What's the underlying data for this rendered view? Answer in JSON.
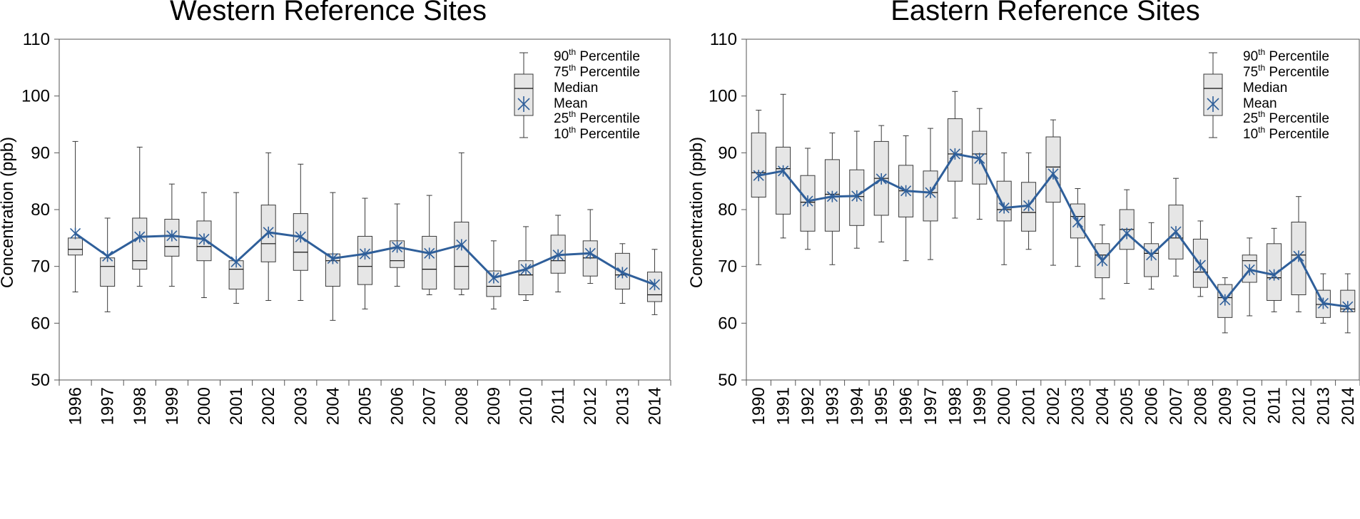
{
  "chart_data": [
    {
      "type": "box",
      "title": "Western Reference Sites",
      "xlabel": "",
      "ylabel": "Concentration (ppb)",
      "ylim": [
        50,
        110
      ],
      "yticks": [
        "50",
        "60",
        "70",
        "80",
        "90",
        "100",
        "110"
      ],
      "categories": [
        "1996",
        "1997",
        "1998",
        "1999",
        "2000",
        "2001",
        "2002",
        "2003",
        "2004",
        "2005",
        "2006",
        "2007",
        "2008",
        "2009",
        "2010",
        "2011",
        "2012",
        "2013",
        "2014"
      ],
      "series": [
        {
          "name": "10th Percentile",
          "values": [
            65.5,
            62,
            66.5,
            66.5,
            64.5,
            63.5,
            64,
            64,
            60.5,
            62.5,
            66.5,
            65,
            65,
            62.5,
            64,
            65.5,
            67,
            63.5,
            61.5
          ]
        },
        {
          "name": "25th Percentile",
          "values": [
            72,
            66.5,
            69.5,
            71.8,
            71,
            66,
            70.8,
            69.3,
            66.5,
            66.8,
            69.8,
            66,
            66,
            64.7,
            65,
            68.8,
            68.3,
            66,
            63.8
          ]
        },
        {
          "name": "Median",
          "values": [
            73,
            70,
            71,
            73.5,
            73.5,
            69.5,
            74,
            72.5,
            71,
            70,
            71,
            69.5,
            70,
            66.5,
            68.5,
            71,
            71.5,
            68.5,
            65
          ]
        },
        {
          "name": "75th Percentile",
          "values": [
            75,
            71.5,
            78.5,
            78.3,
            78,
            71,
            80.8,
            79.3,
            72.2,
            75.3,
            74.5,
            75.3,
            77.8,
            69.2,
            71,
            75.5,
            74.5,
            72.3,
            69
          ]
        },
        {
          "name": "90th Percentile",
          "values": [
            92,
            78.5,
            91,
            84.5,
            83,
            83,
            90,
            88,
            83,
            82,
            81,
            82.5,
            90,
            74.5,
            77,
            79,
            80,
            74,
            73
          ]
        },
        {
          "name": "Mean",
          "values": [
            75.8,
            71.8,
            75.2,
            75.4,
            74.8,
            70.8,
            76,
            75.2,
            71.4,
            72.2,
            73.4,
            72.3,
            73.8,
            68,
            69.5,
            72,
            72.3,
            68.9,
            66.8
          ]
        }
      ],
      "legend": {
        "position": "top-right",
        "entries": [
          {
            "base": "90",
            "sup": "th",
            "rest": " Percentile"
          },
          {
            "base": "75",
            "sup": "th",
            "rest": " Percentile"
          },
          {
            "base": "Median",
            "sup": "",
            "rest": ""
          },
          {
            "base": "Mean",
            "sup": "",
            "rest": ""
          },
          {
            "base": "25",
            "sup": "th",
            "rest": " Percentile"
          },
          {
            "base": "10",
            "sup": "th",
            "rest": " Percentile"
          }
        ]
      }
    },
    {
      "type": "box",
      "title": "Eastern Reference Sites",
      "xlabel": "",
      "ylabel": "Concentration (ppb)",
      "ylim": [
        50,
        110
      ],
      "yticks": [
        "50",
        "60",
        "70",
        "80",
        "90",
        "100",
        "110"
      ],
      "categories": [
        "1990",
        "1991",
        "1992",
        "1993",
        "1994",
        "1995",
        "1996",
        "1997",
        "1998",
        "1999",
        "2000",
        "2001",
        "2002",
        "2003",
        "2004",
        "2005",
        "2006",
        "2007",
        "2008",
        "2009",
        "2010",
        "2011",
        "2012",
        "2013",
        "2014"
      ],
      "series": [
        {
          "name": "10th Percentile",
          "values": [
            70.3,
            75,
            73,
            70.3,
            73.2,
            74.3,
            71,
            71.2,
            78.5,
            78.3,
            70.3,
            73,
            70.2,
            70,
            64.3,
            67,
            66,
            68.3,
            64.7,
            58.3,
            61.3,
            62,
            62,
            60,
            58.3
          ]
        },
        {
          "name": "25th Percentile",
          "values": [
            82.2,
            79.2,
            76.2,
            76.2,
            77.2,
            79,
            78.7,
            78,
            85,
            84.5,
            78,
            76.2,
            81.3,
            75,
            68,
            73,
            68.2,
            71.3,
            66.3,
            61,
            67.2,
            64,
            65,
            61,
            62
          ]
        },
        {
          "name": "Median",
          "values": [
            86.5,
            87.2,
            81.3,
            82.7,
            82.3,
            85.5,
            83.3,
            83,
            89.8,
            89.8,
            80,
            79.5,
            87.5,
            78.8,
            72,
            76.5,
            72.3,
            75,
            69,
            64.5,
            71,
            68,
            72,
            63.3,
            62.5
          ]
        },
        {
          "name": "75th Percentile",
          "values": [
            93.5,
            91,
            86,
            88.8,
            87,
            92,
            87.8,
            86.8,
            96,
            93.8,
            85,
            84.8,
            92.8,
            81,
            74,
            80,
            74,
            80.8,
            74.8,
            66.8,
            72,
            74,
            77.8,
            65.8,
            65.8
          ]
        },
        {
          "name": "90th Percentile",
          "values": [
            97.5,
            100.3,
            90.8,
            93.5,
            93.8,
            94.8,
            93,
            94.3,
            100.8,
            97.8,
            90,
            90,
            95.8,
            83.7,
            77.3,
            83.5,
            77.7,
            85.5,
            78,
            68,
            75,
            76.7,
            82.3,
            68.7,
            68.7
          ]
        },
        {
          "name": "Mean",
          "values": [
            86,
            86.8,
            81.5,
            82.3,
            82.4,
            85.4,
            83.3,
            83,
            89.8,
            89,
            80.3,
            80.7,
            86.3,
            77.8,
            71,
            75.8,
            72,
            76.1,
            70.2,
            64.1,
            69.4,
            68.5,
            71.8,
            63.5,
            62.9
          ]
        }
      ],
      "legend": {
        "position": "top-right",
        "entries": [
          {
            "base": "90",
            "sup": "th",
            "rest": " Percentile"
          },
          {
            "base": "75",
            "sup": "th",
            "rest": " Percentile"
          },
          {
            "base": "Median",
            "sup": "",
            "rest": ""
          },
          {
            "base": "Mean",
            "sup": "",
            "rest": ""
          },
          {
            "base": "25",
            "sup": "th",
            "rest": " Percentile"
          },
          {
            "base": "10",
            "sup": "th",
            "rest": " Percentile"
          }
        ]
      }
    }
  ],
  "colors": {
    "mean_line": "#2f5f9a",
    "box_fill": "#e6e6e6",
    "box_stroke": "#3a3a3a"
  }
}
